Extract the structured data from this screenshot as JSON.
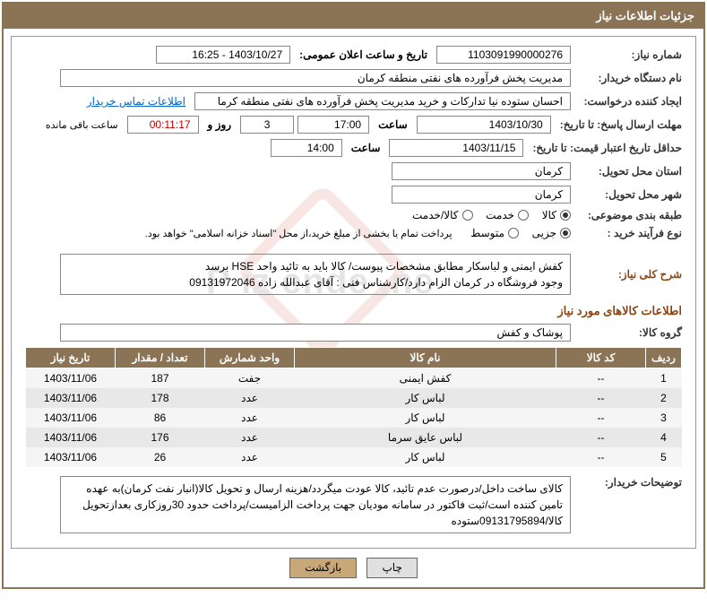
{
  "header": "جزئیات اطلاعات نیاز",
  "fields": {
    "need_number_label": "شماره نیاز:",
    "need_number": "1103091990000276",
    "announce_label": "تاریخ و ساعت اعلان عمومی:",
    "announce_value": "1403/10/27 - 16:25",
    "buyer_org_label": "نام دستگاه خریدار:",
    "buyer_org": "مدیریت پخش فرآورده های نفتی منطقه کرمان",
    "requester_label": "ایجاد کننده درخواست:",
    "requester": "احسان  ستوده نیا  تدارکات و خرید  مدیریت پخش فرآورده های نفتی منطقه کرما",
    "contact_link": "اطلاعات تماس خریدار",
    "deadline_label": "مهلت ارسال پاسخ: تا تاریخ:",
    "deadline_date": "1403/10/30",
    "time_label": "ساعت",
    "deadline_time": "17:00",
    "days_val": "3",
    "days_label": "روز و",
    "countdown": "00:11:17",
    "remaining_label": "ساعت باقی مانده",
    "validity_label": "حداقل تاریخ اعتبار قیمت: تا تاریخ:",
    "validity_date": "1403/11/15",
    "validity_time": "14:00",
    "province_label": "استان محل تحویل:",
    "province": "کرمان",
    "city_label": "شهر محل تحویل:",
    "city": "کرمان",
    "category_label": "طبقه بندی موضوعی:",
    "cat_goods": "کالا",
    "cat_service": "خدمت",
    "cat_both": "کالا/خدمت",
    "process_label": "نوع فرآیند خرید :",
    "proc_partial": "جزیی",
    "proc_medium": "متوسط",
    "payment_note": "پرداخت تمام یا بخشی از مبلغ خرید،از محل \"اسناد خزانه اسلامی\" خواهد بود.",
    "desc_label": "شرح کلی نیاز:",
    "desc_text": "کفش ایمنی و لباسکار مطابق مشخصات پیوست/ کالا باید به تائید واحد HSE برسد\nوجود فروشگاه در کرمان الزام دارد/کارشناس فنی : آقای عبدالله زاده 09131972046",
    "items_section": "اطلاعات کالاهای مورد نیاز",
    "group_label": "گروه کالا:",
    "group_value": "پوشاک و کفش",
    "buyer_notes_label": "توضیحات خریدار:",
    "buyer_notes": "کالای ساخت داخل/درصورت عدم تائید، کالا عودت میگردد/هزینه ارسال و تحویل کالا(انبار نفت کرمان)به عهده تامین کننده است/ثبت فاکتور در سامانه مودیان جهت پرداخت الزامیست/پرداخت حدود 30روزکاری بعدازتحویل کالا/09131795894ستوده"
  },
  "table": {
    "headers": {
      "row": "ردیف",
      "code": "کد کالا",
      "name": "نام کالا",
      "unit": "واحد شمارش",
      "qty": "تعداد / مقدار",
      "date": "تاریخ نیاز"
    },
    "rows": [
      {
        "n": "1",
        "code": "--",
        "name": "کفش ایمنی",
        "unit": "جفت",
        "qty": "187",
        "date": "1403/11/06"
      },
      {
        "n": "2",
        "code": "--",
        "name": "لباس کار",
        "unit": "عدد",
        "qty": "178",
        "date": "1403/11/06"
      },
      {
        "n": "3",
        "code": "--",
        "name": "لباس کار",
        "unit": "عدد",
        "qty": "86",
        "date": "1403/11/06"
      },
      {
        "n": "4",
        "code": "--",
        "name": "لباس عایق سرما",
        "unit": "عدد",
        "qty": "176",
        "date": "1403/11/06"
      },
      {
        "n": "5",
        "code": "--",
        "name": "لباس کار",
        "unit": "عدد",
        "qty": "26",
        "date": "1403/11/06"
      }
    ]
  },
  "buttons": {
    "print": "چاپ",
    "back": "بازگشت"
  },
  "watermark": "P iz ende .ne"
}
